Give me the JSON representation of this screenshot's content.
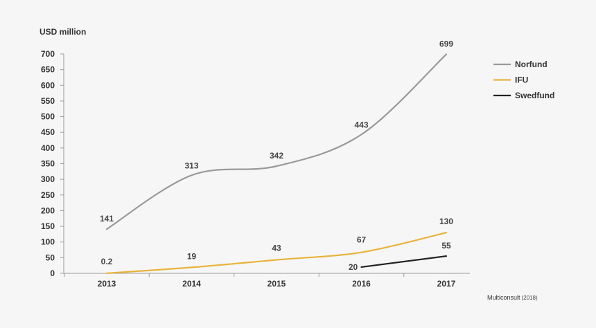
{
  "chart_data": {
    "type": "line",
    "title": "",
    "ylabel": "USD million",
    "xlabel": "",
    "categories": [
      "2013",
      "2014",
      "2015",
      "2016",
      "2017"
    ],
    "ylim": [
      0,
      700
    ],
    "ytick_step": 50,
    "grid": false,
    "legend_position": "top-right",
    "series": [
      {
        "name": "Norfund",
        "color": "#999999",
        "x": [
          "2013",
          "2014",
          "2015",
          "2016",
          "2017"
        ],
        "values": [
          141,
          313,
          342,
          443,
          699
        ],
        "labels": [
          "141",
          "313",
          "342",
          "443",
          "699"
        ]
      },
      {
        "name": "IFU",
        "color": "#e8b33b",
        "x": [
          "2013",
          "2014",
          "2015",
          "2016",
          "2017"
        ],
        "values": [
          0.2,
          19,
          43,
          67,
          130
        ],
        "labels": [
          "0.2",
          "19",
          "43",
          "67",
          "130"
        ]
      },
      {
        "name": "Swedfund",
        "color": "#222222",
        "x": [
          "2016",
          "2017"
        ],
        "values": [
          20,
          55
        ],
        "labels": [
          "20",
          "55"
        ]
      }
    ]
  },
  "source": {
    "name": "Multiconsult",
    "year": "(2018)"
  }
}
